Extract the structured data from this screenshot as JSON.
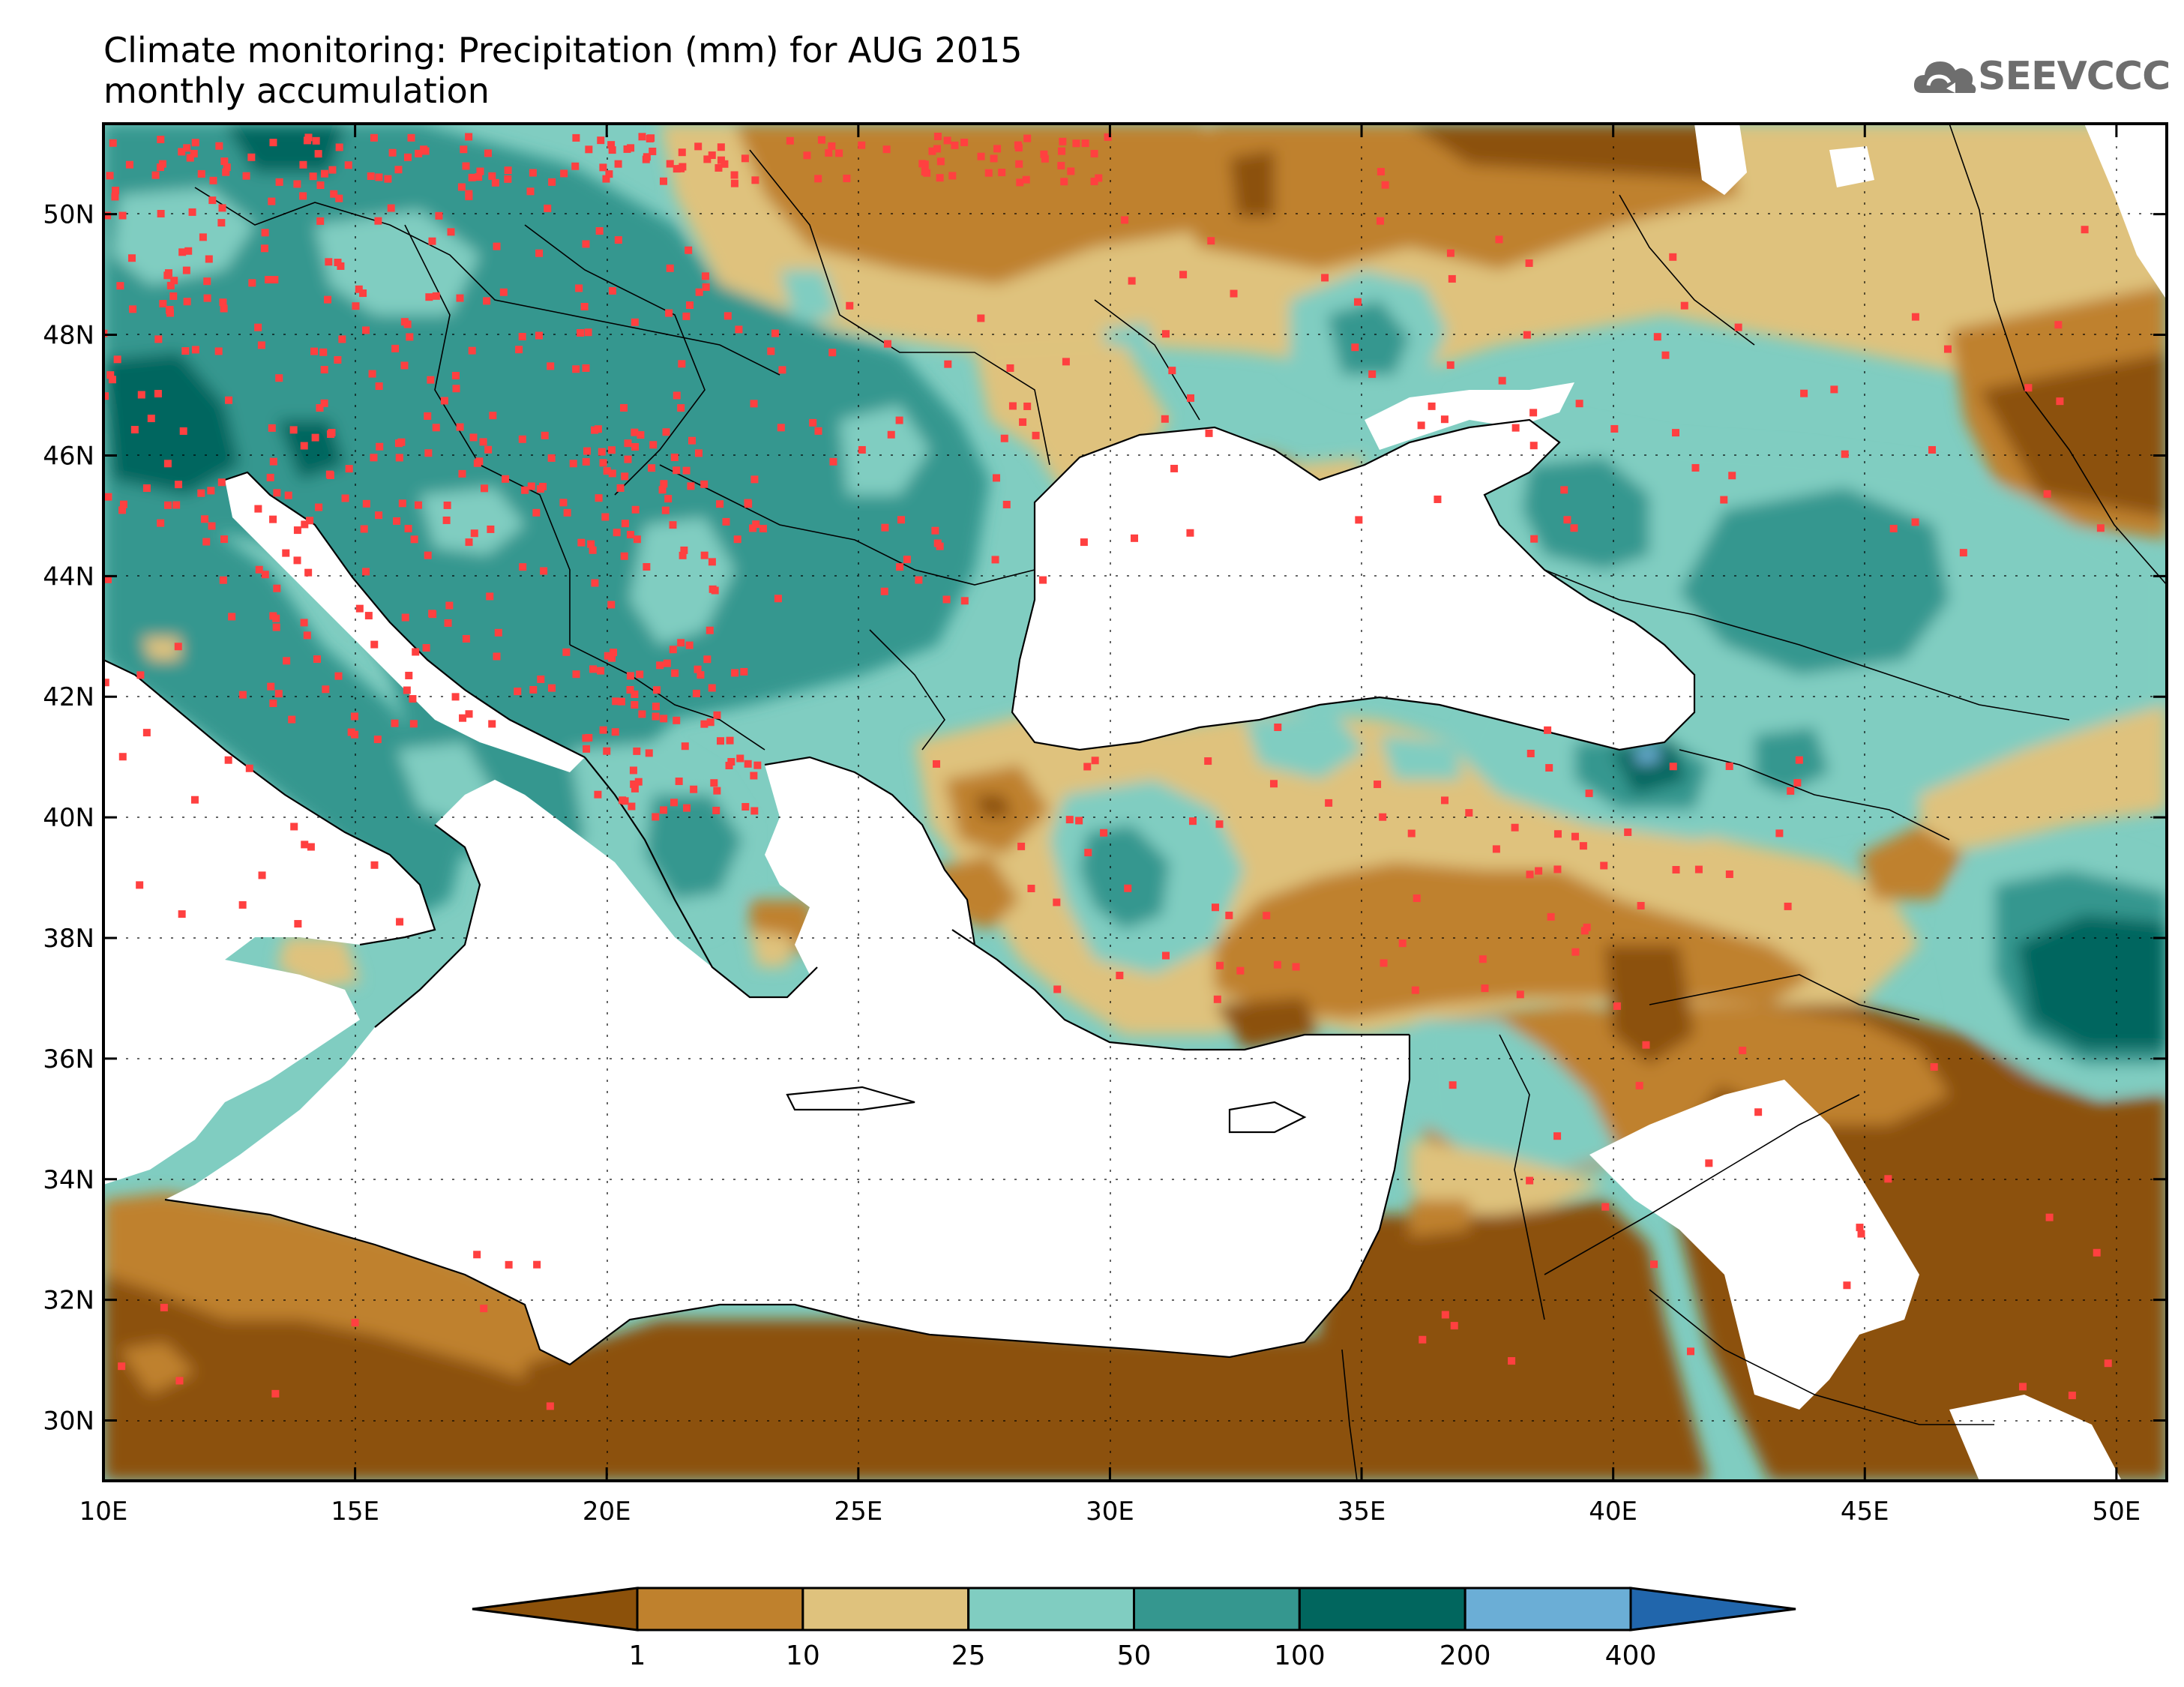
{
  "title_line1": "Climate monitoring: Precipitation (mm) for AUG 2015",
  "title_line2": "monthly accumulation",
  "logo_text": "SEEVCCC",
  "logo_icon": "cloud-logo-icon",
  "lon_ticks": [
    {
      "lon": 10,
      "label": "10E"
    },
    {
      "lon": 15,
      "label": "15E"
    },
    {
      "lon": 20,
      "label": "20E"
    },
    {
      "lon": 25,
      "label": "25E"
    },
    {
      "lon": 30,
      "label": "30E"
    },
    {
      "lon": 35,
      "label": "35E"
    },
    {
      "lon": 40,
      "label": "40E"
    },
    {
      "lon": 45,
      "label": "45E"
    },
    {
      "lon": 50,
      "label": "50E"
    }
  ],
  "lat_ticks": [
    {
      "lat": 30,
      "label": "30N"
    },
    {
      "lat": 32,
      "label": "32N"
    },
    {
      "lat": 34,
      "label": "34N"
    },
    {
      "lat": 36,
      "label": "36N"
    },
    {
      "lat": 38,
      "label": "38N"
    },
    {
      "lat": 40,
      "label": "40N"
    },
    {
      "lat": 42,
      "label": "42N"
    },
    {
      "lat": 44,
      "label": "44N"
    },
    {
      "lat": 46,
      "label": "46N"
    },
    {
      "lat": 48,
      "label": "48N"
    },
    {
      "lat": 50,
      "label": "50N"
    }
  ],
  "extent": {
    "lon_min": 10,
    "lon_max": 51,
    "lat_min": 29,
    "lat_max": 51.5
  },
  "colorbar": {
    "levels": [
      "1",
      "10",
      "25",
      "50",
      "100",
      "200",
      "400"
    ],
    "colors": [
      "#8c510a",
      "#bf812d",
      "#dfc27d",
      "#80cdc1",
      "#35978f",
      "#01665e",
      "#6baed6",
      "#2166ac"
    ]
  },
  "station_color": "#ff4040"
}
